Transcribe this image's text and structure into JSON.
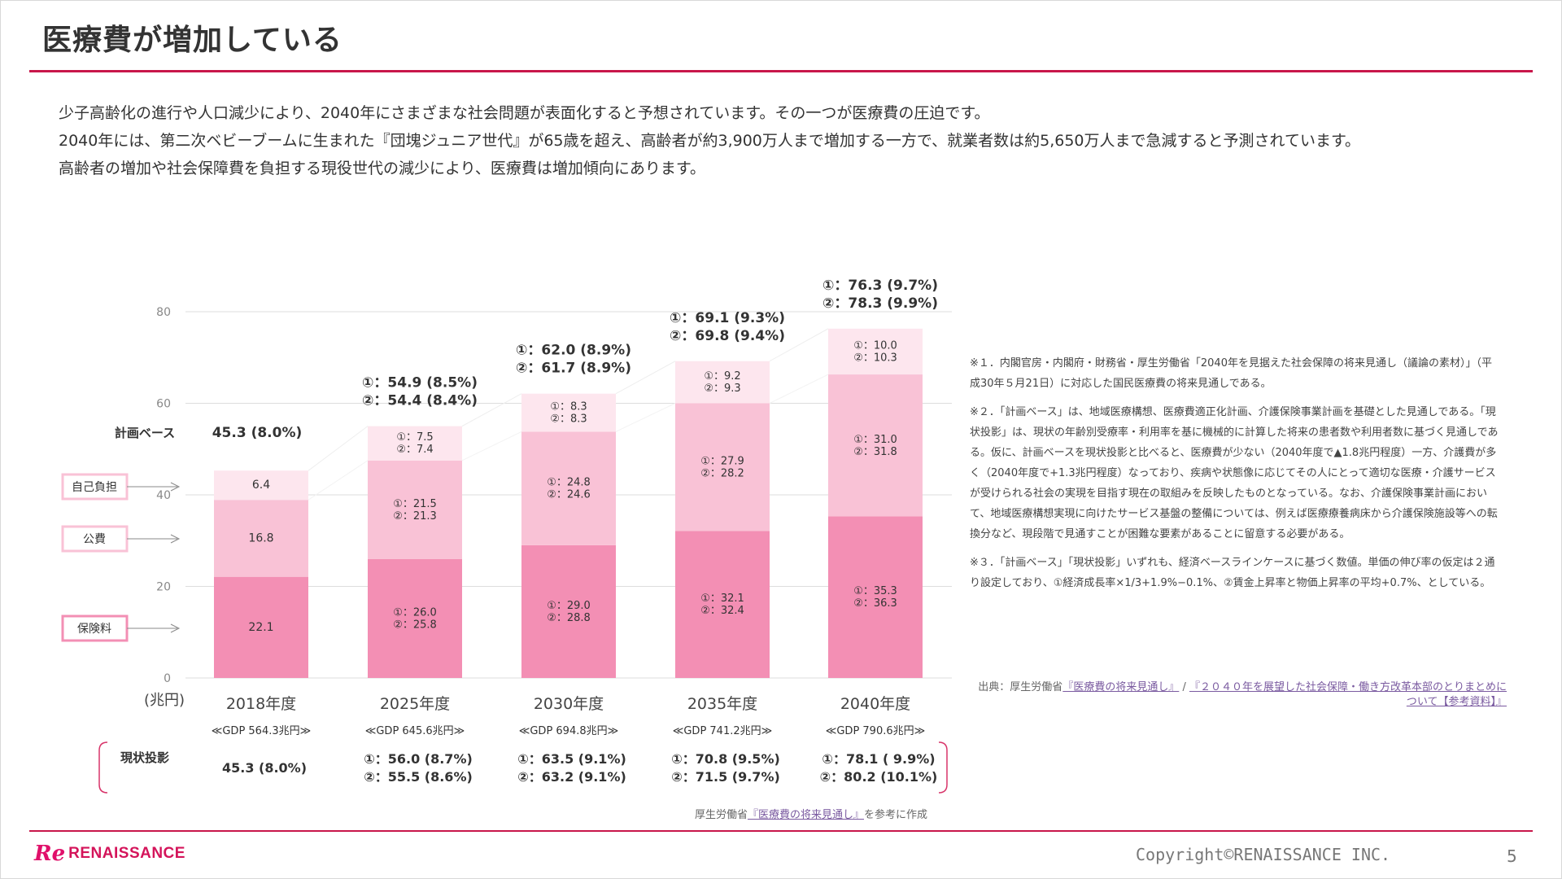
{
  "title": "医療費が増加している",
  "intro": [
    "少子高齢化の進行や人口減少により、2040年にさまざまな社会問題が表面化すると予想されています。その一つが医療費の圧迫です。",
    "2040年には、第二次ベビーブームに生まれた『団塊ジュニア世代』が65歳を超え、高齢者が約3,900万人まで増加する一方で、就業者数は約5,650万人まで急減すると予測されています。",
    "高齢者の増加や社会保障費を負担する現役世代の減少により、医療費は増加傾向にあります。"
  ],
  "chart_data": {
    "type": "bar",
    "stacked": true,
    "categories": [
      "2018年度",
      "2025年度",
      "2030年度",
      "2035年度",
      "2040年度"
    ],
    "gdp_labels": [
      "≪GDP 564.3兆円≫",
      "≪GDP 645.6兆円≫",
      "≪GDP 694.8兆円≫",
      "≪GDP 741.2兆円≫",
      "≪GDP 790.6兆円≫"
    ],
    "unit_label": "(兆円)",
    "ylim": [
      0,
      80
    ],
    "yticks": [
      0,
      20,
      40,
      60,
      80
    ],
    "series": [
      {
        "name": "保険料",
        "color": "#f38fb4",
        "values": [
          22.1,
          26.0,
          29.0,
          32.1,
          35.3
        ],
        "labels": [
          "22.1",
          "①：26.0\n②：25.8",
          "①：29.0\n②：28.8",
          "①：32.1\n②：32.4",
          "①：35.3\n②：36.3"
        ]
      },
      {
        "name": "公費",
        "color": "#f9c2d6",
        "values": [
          16.8,
          21.5,
          24.8,
          27.9,
          31.0
        ],
        "labels": [
          "16.8",
          "①：21.5\n②：21.3",
          "①：24.8\n②：24.6",
          "①：27.9\n②：28.2",
          "①：31.0\n②：31.8"
        ]
      },
      {
        "name": "自己負担",
        "color": "#fde6ee",
        "values": [
          6.4,
          7.5,
          8.3,
          9.2,
          10.0
        ],
        "labels": [
          "6.4",
          "①：7.5\n②：7.4",
          "①：8.3\n②：8.3",
          "①：9.2\n②：9.3",
          "①：10.0\n②：10.3"
        ]
      }
    ],
    "plan_label": "計画ベース",
    "plan_totals": [
      "45.3 (8.0%)",
      "①：54.9 (8.5%)\n②：54.4 (8.4%)",
      "①：62.0 (8.9%)\n②：61.7 (8.9%)",
      "①：69.1 (9.3%)\n②：69.8 (9.4%)",
      "①：76.3 (9.7%)\n②：78.3 (9.9%)"
    ],
    "current_label": "現状投影",
    "current_totals": [
      "45.3 (8.0%)",
      "①：56.0 (8.7%)\n②：55.5 (8.6%)",
      "①：63.5 (9.1%)\n②：63.2 (9.1%)",
      "①：70.8 (9.5%)\n②：71.5 (9.7%)",
      "①：78.1 ( 9.9%)\n②：80.2 (10.1%)"
    ],
    "grid": true
  },
  "notes": [
    "※１．内閣官房・内閣府・財務省・厚生労働省「2040年を見据えた社会保障の将来見通し（議論の素材）」（平成30年５月21日）に対応した国民医療費の将来見通しである。",
    "※２．「計画ベース」は、地域医療構想、医療費適正化計画、介護保険事業計画を基礎とした見通しである。「現状投影」は、現状の年齢別受療率・利用率を基に機械的に計算した将来の患者数や利用者数に基づく見通しである。仮に、計画ベースを現状投影と比べると、医療費が少ない（2040年度で▲1.8兆円程度）一方、介護費が多く（2040年度で+1.3兆円程度）なっており、疾病や状態像に応じてその人にとって適切な医療・介護サービスが受けられる社会の実現を目指す現在の取組みを反映したものとなっている。なお、介護保険事業計画において、地域医療構想実現に向けたサービス基盤の整備については、例えば医療療養病床から介護保険施設等への転換分など、現段階で見通すことが困難な要素があることに留意する必要がある。",
    "※３．「計画ベース」「現状投影」いずれも、経済ベースラインケースに基づく数値。単価の伸び率の仮定は２通り設定しており、①経済成長率×1/3+1.9%−0.1%、②賃金上昇率と物価上昇率の平均+0.7%、としている。"
  ],
  "source": {
    "prefix": "出典：厚生労働省",
    "link1": "『医療費の将来見通し』",
    "sep": " / ",
    "link2": "『２０４０年を展望した社会保障・働き方改革本部のとりまとめについて【参考資料】』"
  },
  "chart_credit": {
    "prefix": "厚生労働省",
    "link": "『医療費の将来見通し』",
    "suffix": "を参考に作成"
  },
  "footer": {
    "brand": "RENAISSANCE",
    "brand_mark": "Re",
    "copyright": "Copyright©RENAISSANCE INC.",
    "page": "5"
  },
  "colors": {
    "accent": "#c8174a",
    "insurance": "#f38fb4",
    "public": "#f9c2d6",
    "self": "#fde6ee"
  }
}
